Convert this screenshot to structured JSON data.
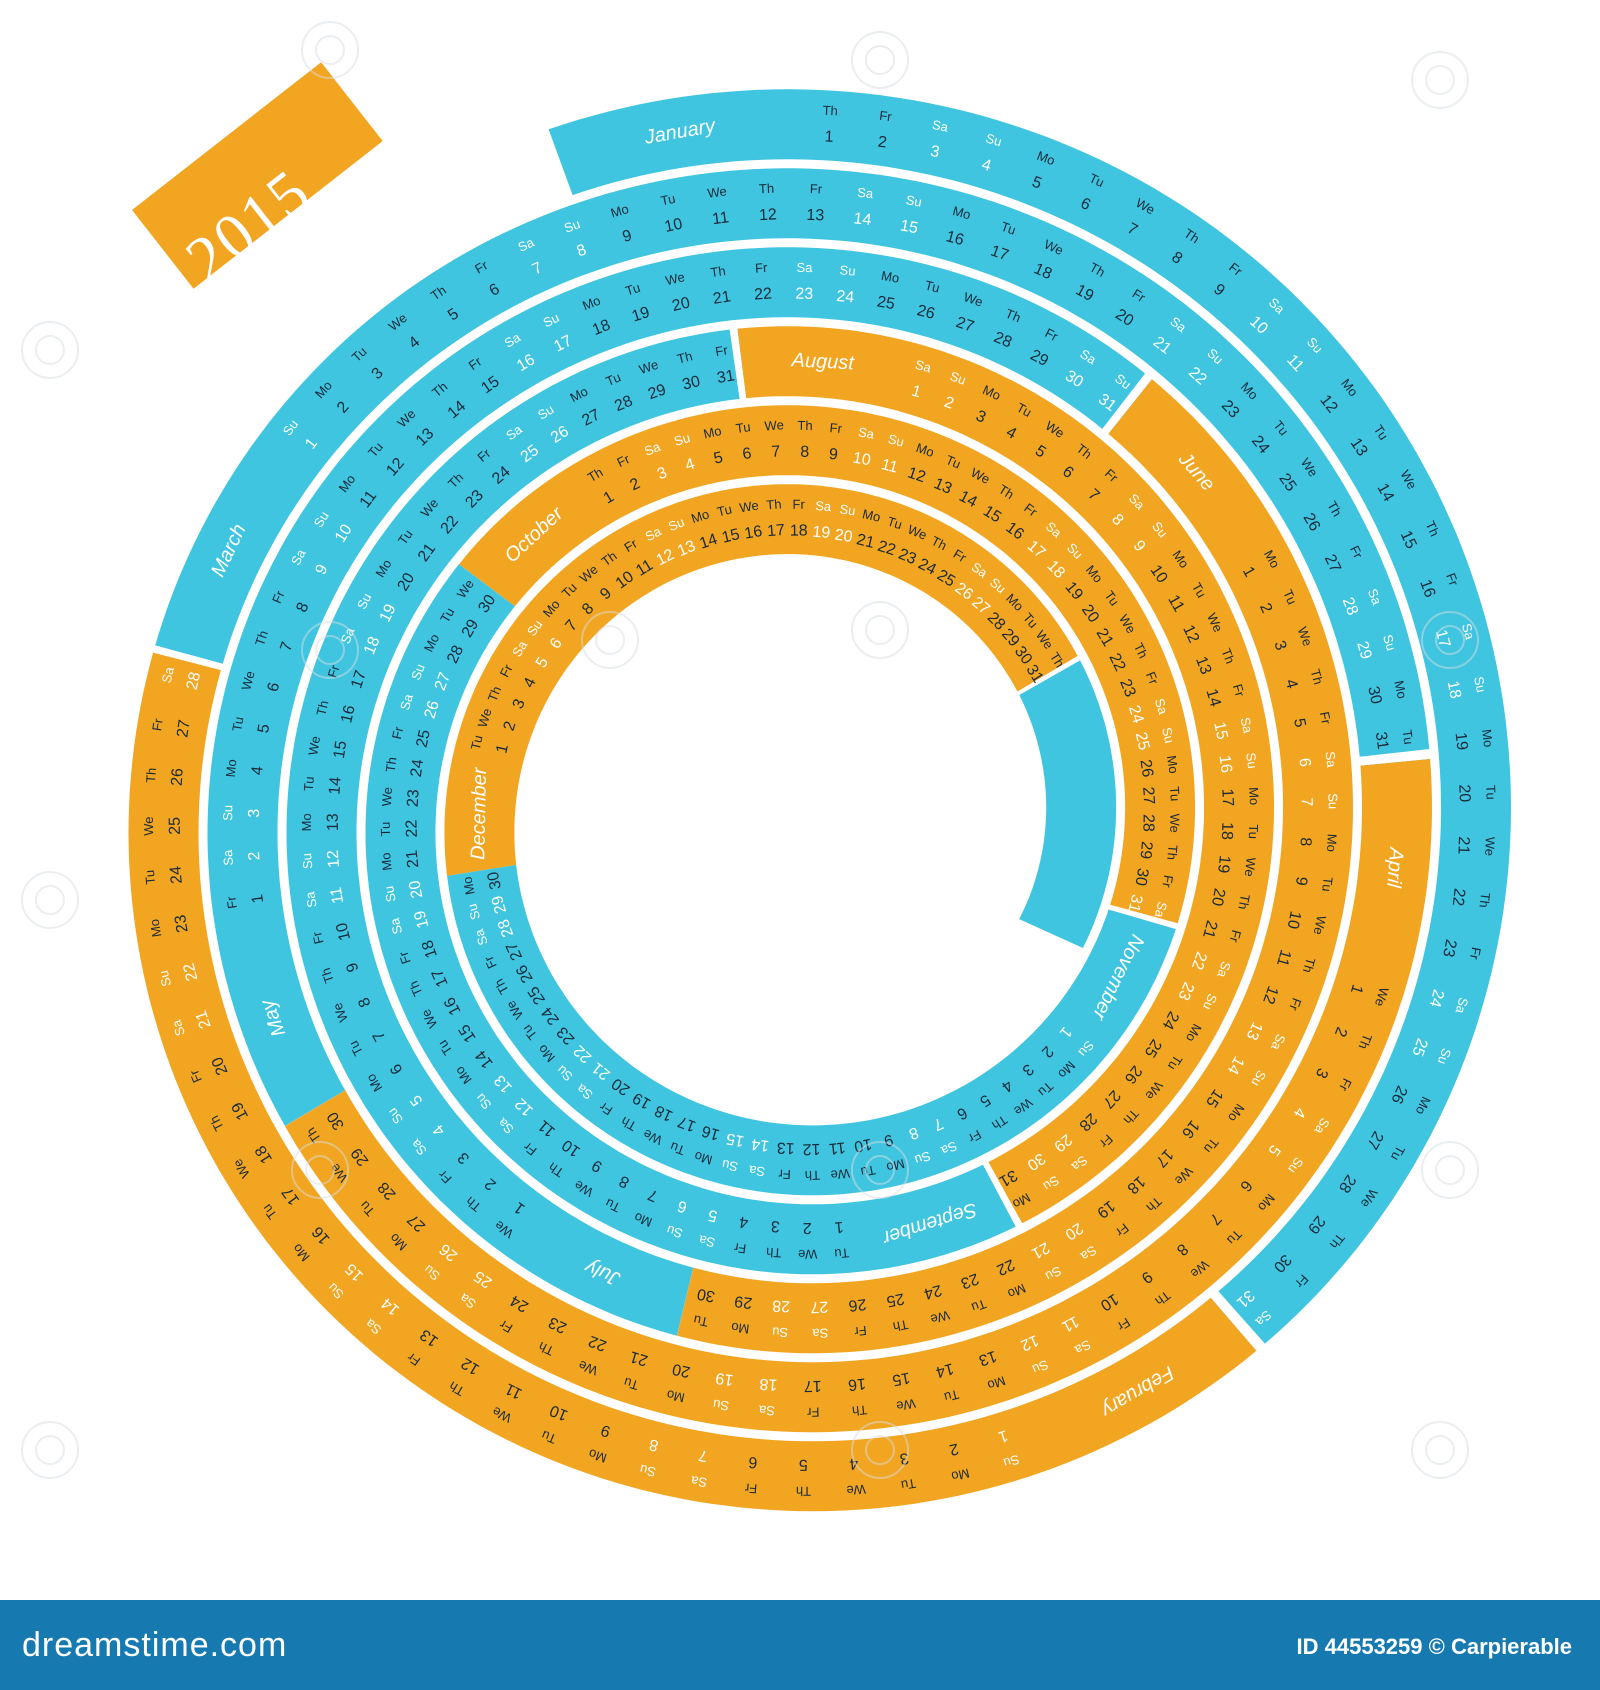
{
  "calendar": {
    "year": "2015",
    "weekdays": [
      "Mo",
      "Tu",
      "We",
      "Th",
      "Fr",
      "Sa",
      "Su"
    ],
    "colors": {
      "blue": "#3fc5e0",
      "orange": "#f2a521",
      "weekday_text": "#1b2a3a",
      "weekend_text": "#ffffff",
      "fold": "#1fa3c4"
    },
    "months": [
      {
        "name": "January",
        "days": 31,
        "first_weekday": "Th",
        "color": "blue"
      },
      {
        "name": "February",
        "days": 28,
        "first_weekday": "Su",
        "color": "orange"
      },
      {
        "name": "March",
        "days": 31,
        "first_weekday": "Su",
        "color": "blue"
      },
      {
        "name": "April",
        "days": 30,
        "first_weekday": "We",
        "color": "orange"
      },
      {
        "name": "May",
        "days": 31,
        "first_weekday": "Fr",
        "color": "blue"
      },
      {
        "name": "June",
        "days": 30,
        "first_weekday": "Mo",
        "color": "orange"
      },
      {
        "name": "July",
        "days": 31,
        "first_weekday": "We",
        "color": "blue"
      },
      {
        "name": "August",
        "days": 31,
        "first_weekday": "Sa",
        "color": "orange"
      },
      {
        "name": "September",
        "days": 30,
        "first_weekday": "Tu",
        "color": "blue"
      },
      {
        "name": "October",
        "days": 31,
        "first_weekday": "Th",
        "color": "orange"
      },
      {
        "name": "November",
        "days": 30,
        "first_weekday": "Su",
        "color": "blue"
      },
      {
        "name": "December",
        "days": 31,
        "first_weekday": "Tu",
        "color": "orange"
      }
    ]
  },
  "watermark": "dreamstime",
  "footer": {
    "logo": "dreamstime.com",
    "id_text": "ID 44553259 © Carpierable"
  }
}
